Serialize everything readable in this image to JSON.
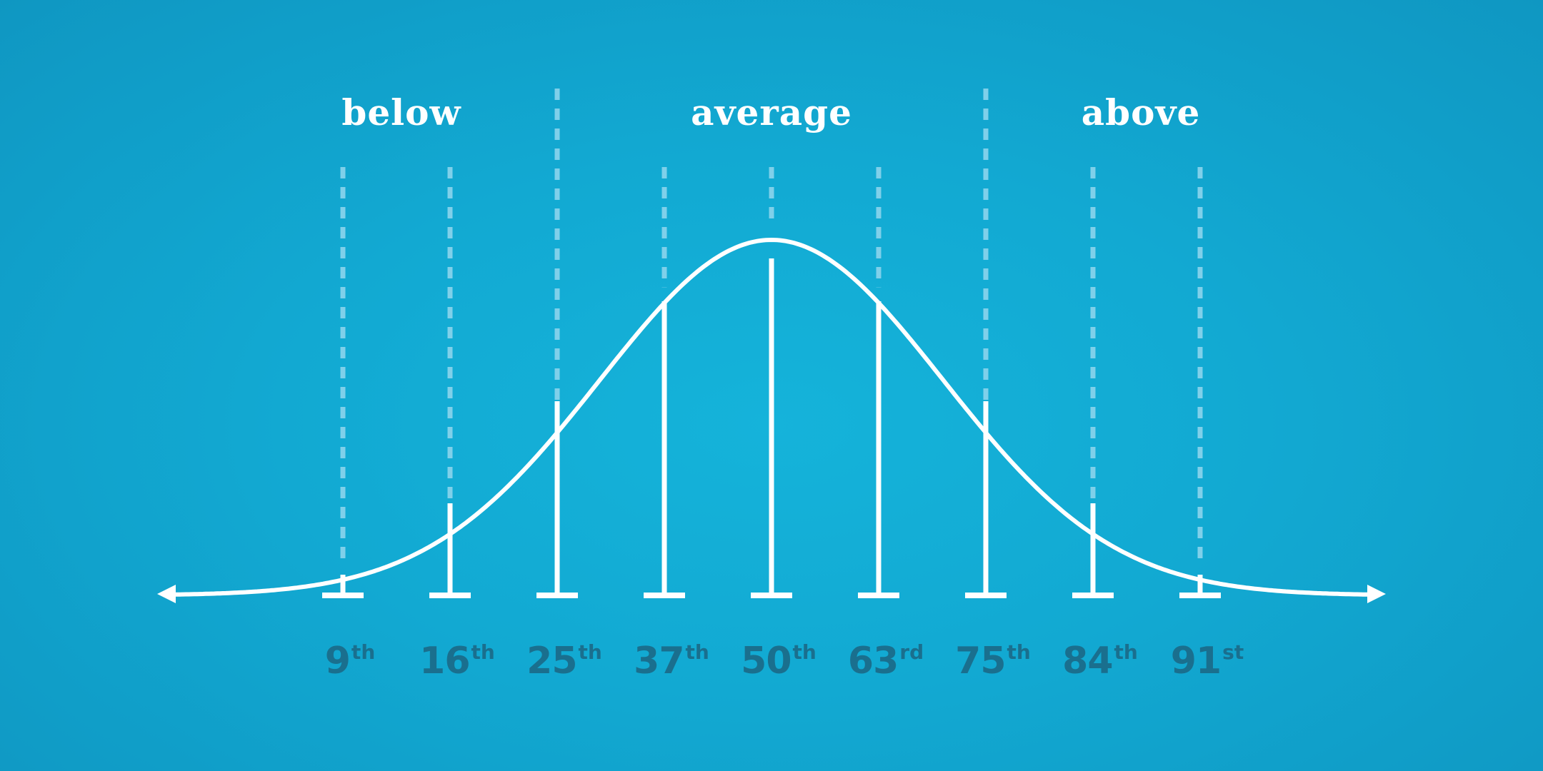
{
  "categories": [
    {
      "label": "below"
    },
    {
      "label": "average"
    },
    {
      "label": "above"
    }
  ],
  "percentiles": [
    {
      "number": "9",
      "suffix": "th"
    },
    {
      "number": "16",
      "suffix": "th"
    },
    {
      "number": "25",
      "suffix": "th"
    },
    {
      "number": "37",
      "suffix": "th"
    },
    {
      "number": "50",
      "suffix": "th"
    },
    {
      "number": "63",
      "suffix": "rd"
    },
    {
      "number": "75",
      "suffix": "th"
    },
    {
      "number": "84",
      "suffix": "th"
    },
    {
      "number": "91",
      "suffix": "st"
    }
  ],
  "colors": {
    "background": "#12a9d2",
    "line": "#ffffff",
    "dashed_line": "#7fd0ea",
    "percentile_text": "#1a6f8e"
  }
}
